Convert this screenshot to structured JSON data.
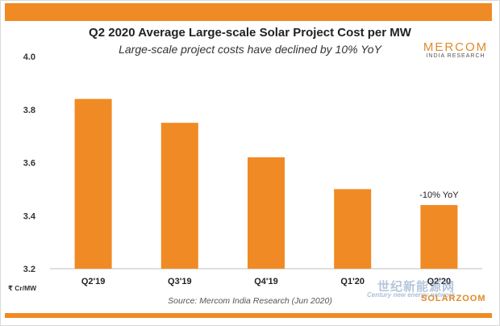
{
  "header": {
    "title": "Q2 2020 Average Large-scale Solar Project Cost per MW",
    "subtitle": "Large-scale project costs have declined by 10% YoY"
  },
  "logo": {
    "name": "MERCOM",
    "tagline": "INDIA RESEARCH"
  },
  "footer": {
    "source": "Source: Mercom India Research (Jun 2020)",
    "watermark_cn": "世纪新能源网",
    "watermark_en": "Century new energy network",
    "watermark_brand": "SOLARZOOM"
  },
  "colors": {
    "bar": "#f08a24",
    "band": "#f08a24"
  },
  "chart_data": {
    "type": "bar",
    "categories": [
      "Q2'19",
      "Q3'19",
      "Q4'19",
      "Q1'20",
      "Q2'20"
    ],
    "values": [
      3.84,
      3.75,
      3.62,
      3.5,
      3.44
    ],
    "ylabel": "₹ Cr/MW",
    "ylim": [
      3.2,
      4.0
    ],
    "yticks": [
      "3.2",
      "3.4",
      "3.6",
      "3.8",
      "4.0"
    ],
    "annotations": [
      {
        "category": "Q2'20",
        "text": "-10% YoY"
      }
    ],
    "grid": false,
    "legend": "none"
  }
}
